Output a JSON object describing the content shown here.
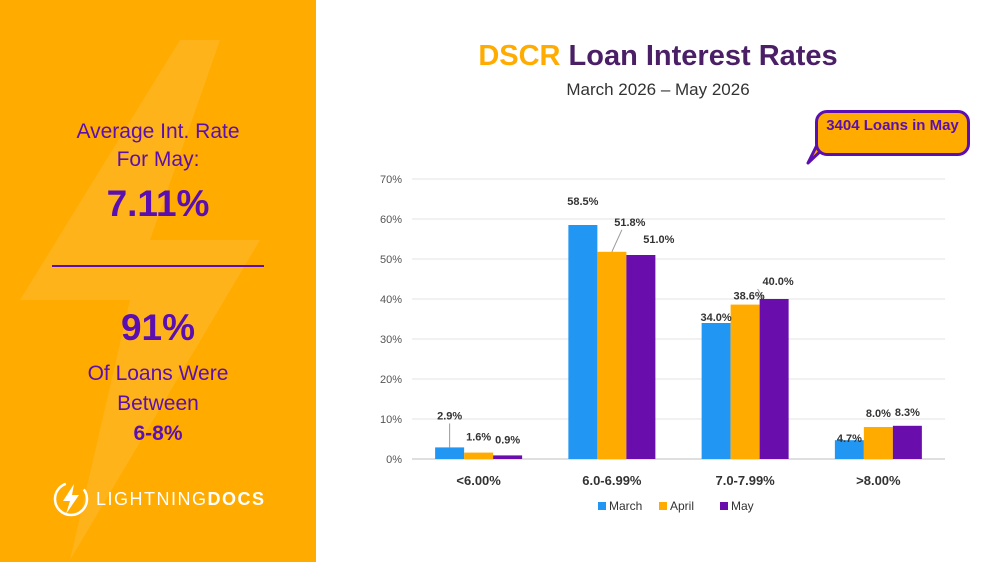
{
  "sidebar": {
    "avg_label_line1": "Average Int. Rate",
    "avg_label_line2": "For May:",
    "avg_value": "7.11%",
    "pct_value": "91%",
    "pct_label_line1": "Of Loans Were",
    "pct_label_line2": "Between",
    "pct_label_line3": "6-8%",
    "logo_light": "LIGHTNING",
    "logo_bold": "DOCS",
    "colors": {
      "background": "#FFAB00",
      "text": "#5B0FB0"
    }
  },
  "header": {
    "title_accent": "DSCR",
    "title_rest": "Loan Interest Rates",
    "subtitle": "March 2026 – May 2026"
  },
  "callout": {
    "text": "3404 Loans in May"
  },
  "chart_data": {
    "type": "bar",
    "title": "DSCR Loan Interest Rates",
    "subtitle": "March 2026 – May 2026",
    "categories": [
      "<6.00%",
      "6.0-6.99%",
      "7.0-7.99%",
      ">8.00%"
    ],
    "series": [
      {
        "name": "March",
        "color": "#2196F3",
        "values": [
          2.9,
          58.5,
          34.0,
          4.7
        ]
      },
      {
        "name": "April",
        "color": "#FFAB00",
        "values": [
          1.6,
          51.8,
          38.6,
          8.0
        ]
      },
      {
        "name": "May",
        "color": "#6A0DAD",
        "values": [
          0.9,
          51.0,
          40.0,
          8.3
        ]
      }
    ],
    "value_labels": [
      [
        "2.9%",
        "58.5%",
        "34.0%",
        "4.7%"
      ],
      [
        "1.6%",
        "51.8%",
        "38.6%",
        "8.0%"
      ],
      [
        "0.9%",
        "51.0%",
        "40.0%",
        "8.3%"
      ]
    ],
    "yticks": [
      "0%",
      "10%",
      "20%",
      "30%",
      "40%",
      "50%",
      "60%",
      "70%"
    ],
    "ylim": [
      0,
      70
    ],
    "grid": true,
    "legend": "bottom"
  }
}
